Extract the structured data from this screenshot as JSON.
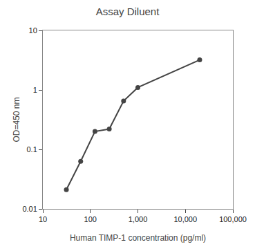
{
  "chart_data": {
    "type": "line",
    "title": "Assay Diluent",
    "xlabel": "Human TIMP-1 concentration (pg/ml)",
    "ylabel": "OD=450 nm",
    "x": [
      31.25,
      62.5,
      125,
      250,
      500,
      1000,
      20000
    ],
    "values": [
      0.021,
      0.063,
      0.2,
      0.22,
      0.65,
      1.1,
      3.2
    ],
    "color": "#444444",
    "marker": "circle",
    "log": true,
    "grid": false,
    "xlim": [
      10,
      100000
    ],
    "xticks": [
      10,
      100,
      {
        "value": 1000,
        "label": "1,000"
      },
      {
        "value": 10000,
        "label": "10,000"
      },
      {
        "value": 100000,
        "label": "100,000"
      }
    ],
    "ylim": [
      0.01,
      10
    ],
    "yticks": [
      0.01,
      0.1,
      1,
      10
    ]
  }
}
